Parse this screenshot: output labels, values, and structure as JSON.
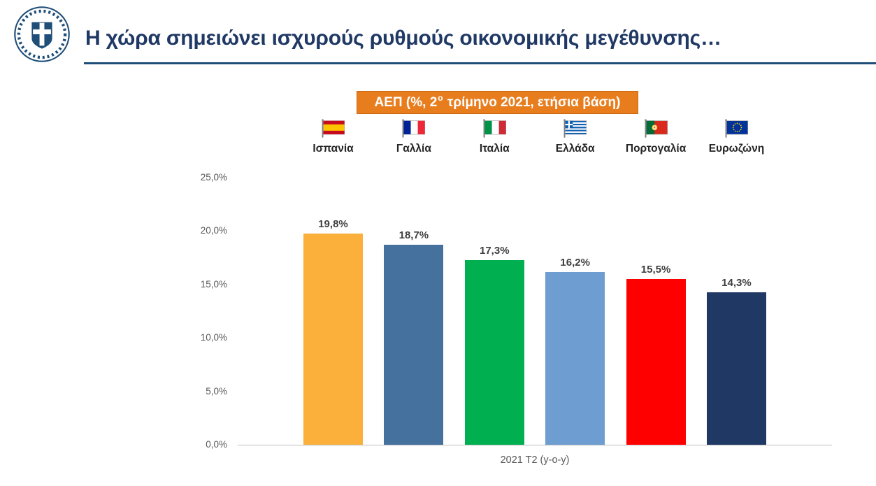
{
  "header": {
    "title": "Η χώρα σημειώνει ισχυρούς ρυθμούς οικονομικής μεγέθυνσης…",
    "logo": "greek-national-emblem"
  },
  "badge": {
    "prefix": "ΑΕΠ (%, 2",
    "sup": "ο",
    "suffix": " τρίμηνο 2021, ετήσια βάση)",
    "bg_color": "#E87D1E"
  },
  "colors": {
    "title_text": "#1F3864",
    "title_rule": "#1F4E79",
    "axis_text": "#595959",
    "axis_line": "#BDBDBD",
    "value_label": "#3F3F3F"
  },
  "chart_data": {
    "type": "bar",
    "title": "ΑΕΠ (%, 2ο τρίμηνο 2021, ετήσια βάση)",
    "categories": [
      "Ισπανία",
      "Γαλλία",
      "Ιταλία",
      "Ελλάδα",
      "Πορτογαλία",
      "Ευρωζώνη"
    ],
    "values": [
      19.8,
      18.7,
      17.3,
      16.2,
      15.5,
      14.3
    ],
    "value_labels": [
      "19,8%",
      "18,7%",
      "17,3%",
      "16,2%",
      "15,5%",
      "14,3%"
    ],
    "bar_colors": [
      "#FBB03B",
      "#45719F",
      "#00B050",
      "#6D9DD1",
      "#FF0000",
      "#1F3864"
    ],
    "flags": [
      "spain",
      "france",
      "italy",
      "greece",
      "portugal",
      "eurozone"
    ],
    "xlabel": "2021 T2 (y-o-y)",
    "ylabel": "",
    "ylim": [
      0,
      25
    ],
    "ytick_values": [
      25,
      20,
      15,
      10,
      5,
      0
    ],
    "ytick_labels": [
      "25,0%",
      "20,0%",
      "15,0%",
      "10,0%",
      "5,0%",
      "0,0%"
    ],
    "grid": false,
    "legend_position": "top"
  }
}
